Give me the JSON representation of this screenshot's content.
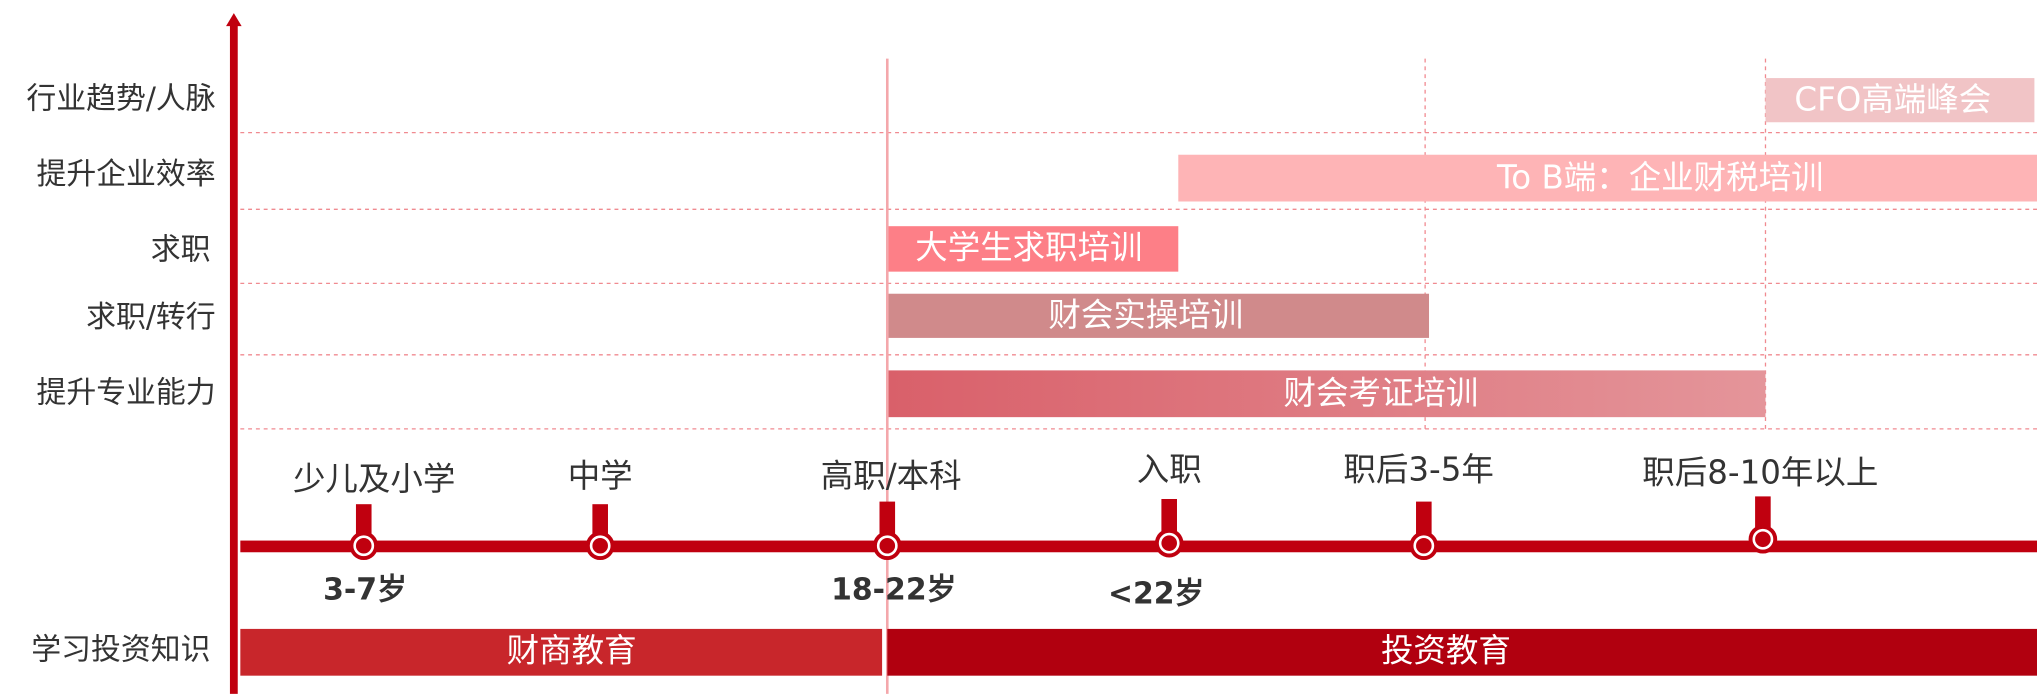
{
  "rows": [
    "行业趋势/人脉",
    "提升企业效率",
    "求职",
    "求职/转行",
    "提升专业能力",
    "学习投资知识"
  ],
  "bars": [
    "CFO高端峰会",
    "To B端：企业财税培训",
    "大学生求职培训",
    "财会实操培训",
    "财会考证培训"
  ],
  "stages": [
    "少儿及小学",
    "中学",
    "高职/本科",
    "入职",
    "职后3-5年",
    "职后8-10年以上"
  ],
  "ages": [
    "3-7岁",
    "18-22岁",
    "<22岁"
  ],
  "education": [
    "财商教育",
    "投资教育"
  ]
}
